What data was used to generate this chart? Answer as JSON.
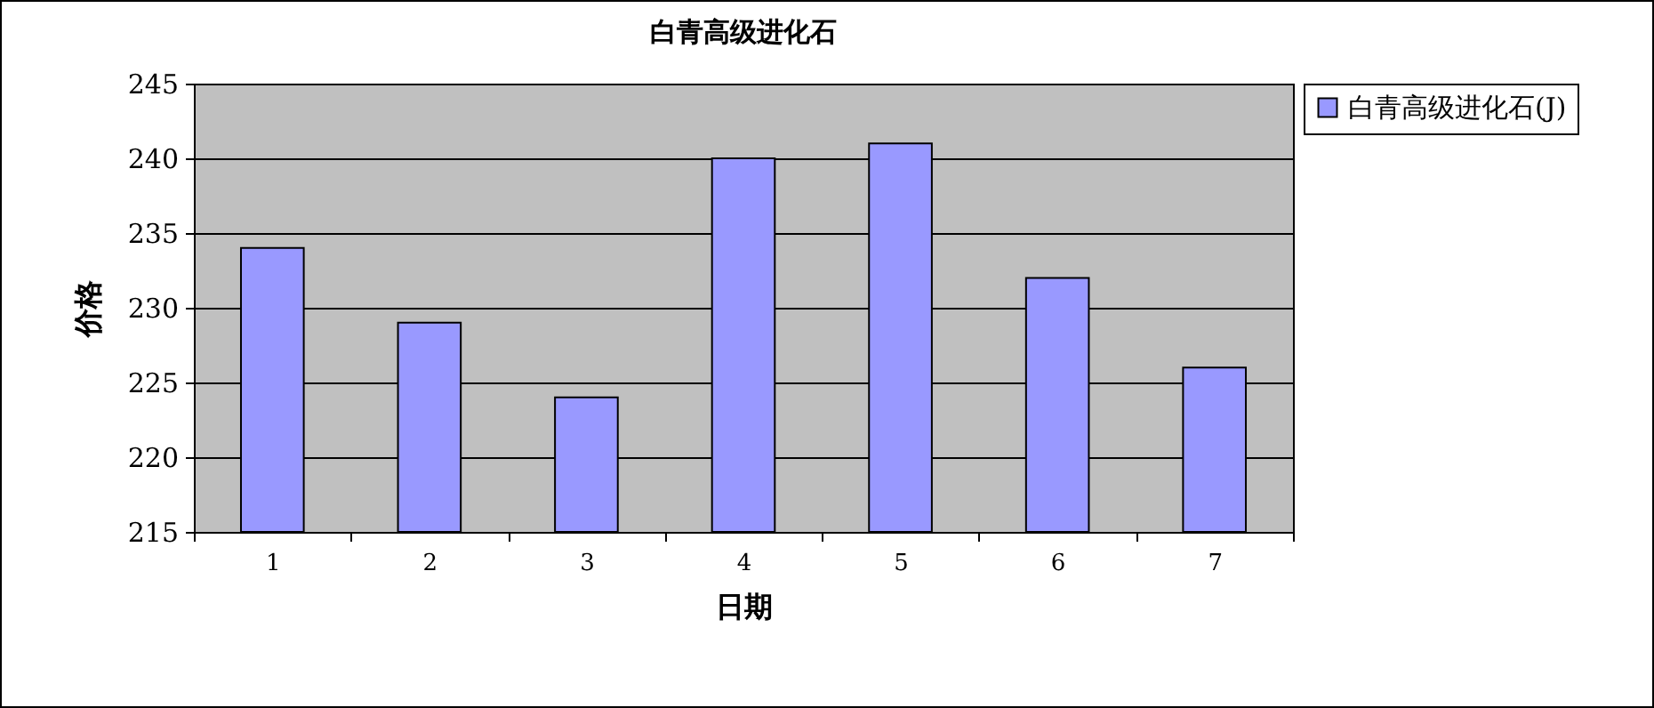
{
  "chart_data": {
    "type": "bar",
    "title": "白青高级进化石",
    "xlabel": "日期",
    "ylabel": "价格",
    "categories": [
      "1",
      "2",
      "3",
      "4",
      "5",
      "6",
      "7"
    ],
    "series": [
      {
        "name": "白青高级进化石(J)",
        "color": "#9999ff",
        "values": [
          234,
          229,
          224,
          240,
          241,
          232,
          226
        ]
      }
    ],
    "ylim": [
      215,
      245
    ],
    "yticks": [
      215,
      220,
      225,
      230,
      235,
      240,
      245
    ],
    "grid": "y",
    "legend": "right"
  }
}
